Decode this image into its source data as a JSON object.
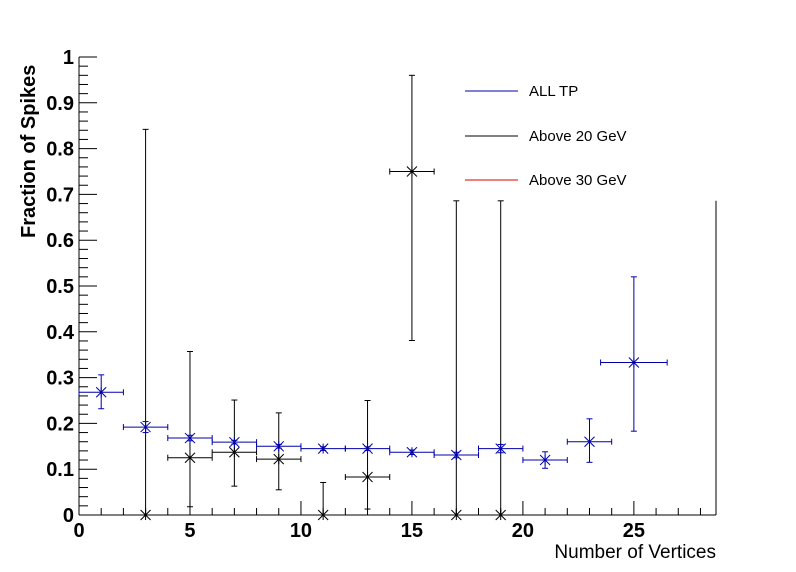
{
  "chart_data": {
    "type": "scatter",
    "xlabel": "Number of Vertices",
    "ylabel": "Fraction of Spikes",
    "xlim": [
      0,
      28.7
    ],
    "ylim": [
      0,
      1
    ],
    "x_major_ticks": [
      0,
      5,
      10,
      15,
      20,
      25
    ],
    "y_major_ticks": [
      0,
      0.1,
      0.2,
      0.3,
      0.4,
      0.5,
      0.6,
      0.7,
      0.8,
      0.9,
      1
    ],
    "x_tick_labels": [
      "0",
      "5",
      "10",
      "15",
      "20",
      "25"
    ],
    "y_tick_labels": [
      "0",
      "0.1",
      "0.2",
      "0.3",
      "0.4",
      "0.5",
      "0.6",
      "0.7",
      "0.8",
      "0.9",
      "1"
    ],
    "grid": false,
    "legend_placement": "top-right",
    "series": [
      {
        "name": "ALL TP",
        "color": "#0000aa",
        "points": [
          {
            "x": 1,
            "xerr": 1,
            "y": 0.268,
            "ylo": 0.232,
            "yhi": 0.306
          },
          {
            "x": 3,
            "xerr": 1,
            "y": 0.192,
            "ylo": 0.18,
            "yhi": 0.204
          },
          {
            "x": 5,
            "xerr": 1,
            "y": 0.168,
            "ylo": 0.162,
            "yhi": 0.174
          },
          {
            "x": 7,
            "xerr": 1,
            "y": 0.159,
            "ylo": 0.155,
            "yhi": 0.163
          },
          {
            "x": 9,
            "xerr": 1,
            "y": 0.15,
            "ylo": 0.146,
            "yhi": 0.154
          },
          {
            "x": 11,
            "xerr": 1,
            "y": 0.145,
            "ylo": 0.141,
            "yhi": 0.149
          },
          {
            "x": 13,
            "xerr": 1,
            "y": 0.145,
            "ylo": 0.141,
            "yhi": 0.149
          },
          {
            "x": 15,
            "xerr": 1,
            "y": 0.137,
            "ylo": 0.132,
            "yhi": 0.142
          },
          {
            "x": 17,
            "xerr": 1,
            "y": 0.131,
            "ylo": 0.125,
            "yhi": 0.137
          },
          {
            "x": 19,
            "xerr": 1,
            "y": 0.145,
            "ylo": 0.136,
            "yhi": 0.154
          },
          {
            "x": 21,
            "xerr": 1,
            "y": 0.12,
            "ylo": 0.102,
            "yhi": 0.138
          },
          {
            "x": 23,
            "xerr": 1,
            "y": 0.16,
            "ylo": 0.115,
            "yhi": 0.21
          },
          {
            "x": 25,
            "xerr": 1.5,
            "y": 0.333,
            "ylo": 0.183,
            "yhi": 0.52
          }
        ]
      },
      {
        "name": "Above 20 GeV",
        "color": "#000000",
        "points": [
          {
            "x": 3,
            "xerr": 0,
            "y": 0.0,
            "ylo": 0.0,
            "yhi": 0.842
          },
          {
            "x": 5,
            "xerr": 1,
            "y": 0.125,
            "ylo": 0.018,
            "yhi": 0.357
          },
          {
            "x": 7,
            "xerr": 1,
            "y": 0.137,
            "ylo": 0.063,
            "yhi": 0.251
          },
          {
            "x": 9,
            "xerr": 1,
            "y": 0.122,
            "ylo": 0.055,
            "yhi": 0.223
          },
          {
            "x": 11,
            "xerr": 0,
            "y": 0.0,
            "ylo": 0.0,
            "yhi": 0.071
          },
          {
            "x": 13,
            "xerr": 1,
            "y": 0.083,
            "ylo": 0.013,
            "yhi": 0.25
          },
          {
            "x": 15,
            "xerr": 1,
            "y": 0.75,
            "ylo": 0.381,
            "yhi": 0.96
          },
          {
            "x": 17,
            "xerr": 0,
            "y": 0.0,
            "ylo": 0.0,
            "yhi": 0.686
          },
          {
            "x": 19,
            "xerr": 0,
            "y": 0.0,
            "ylo": 0.0,
            "yhi": 0.686
          }
        ]
      },
      {
        "name": "Above 30 GeV",
        "color": "#dd0000",
        "points": []
      }
    ],
    "extra_lines": [
      {
        "color": "#000000",
        "x": 28.7,
        "ylo": 0,
        "yhi": 0.686
      }
    ]
  }
}
